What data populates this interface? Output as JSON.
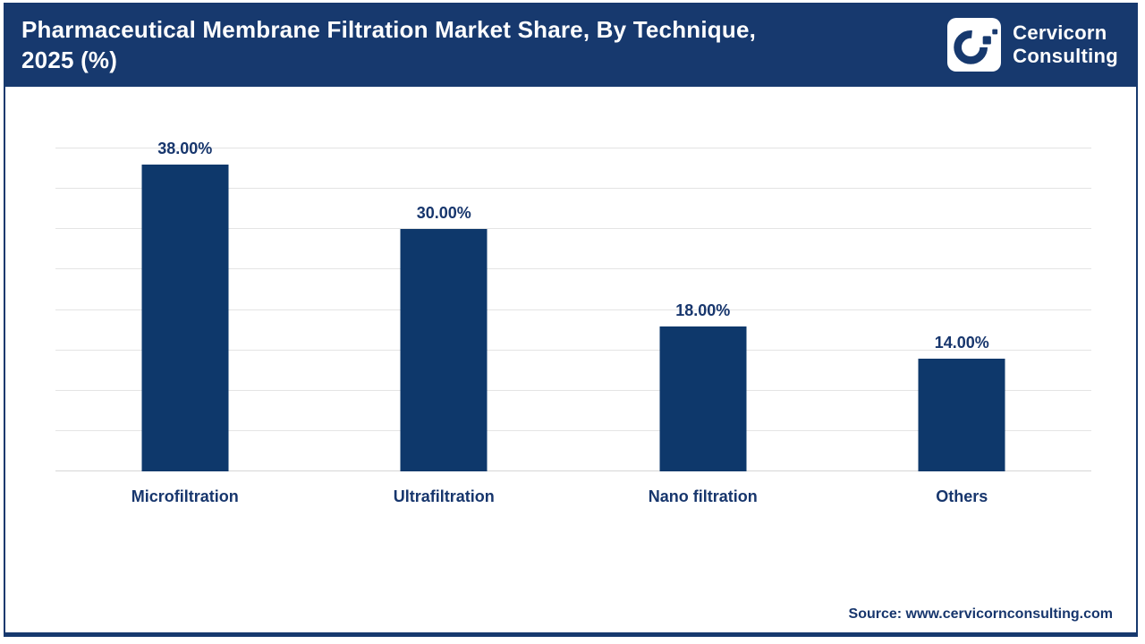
{
  "header": {
    "title_line1": "Pharmaceutical Membrane Filtration Market Share, By Technique,",
    "title_line2": "2025 (%)",
    "logo": {
      "icon": "cervicorn-c-logo",
      "line1": "Cervicorn",
      "line2": "Consulting"
    }
  },
  "footer": {
    "source_text": "Source: www.cervicornconsulting.com"
  },
  "colors": {
    "header_navy": "#17396e",
    "bar_fill": "#0e386b",
    "label_text": "#17366d",
    "gridline": "#e4e4e4"
  },
  "chart_data": {
    "type": "bar",
    "title": "Pharmaceutical Membrane Filtration Market Share, By Technique, 2025 (%)",
    "categories": [
      "Microfiltration",
      "Ultrafiltration",
      "Nano filtration",
      "Others"
    ],
    "values": [
      38,
      30,
      18,
      14
    ],
    "value_labels": [
      "38.00%",
      "30.00%",
      "18.00%",
      "14.00%"
    ],
    "xlabel": "",
    "ylabel": "",
    "ylim": [
      0,
      40
    ],
    "gridline_step": 5,
    "grid": true,
    "y_tick_labels_visible": false,
    "legend": false
  }
}
